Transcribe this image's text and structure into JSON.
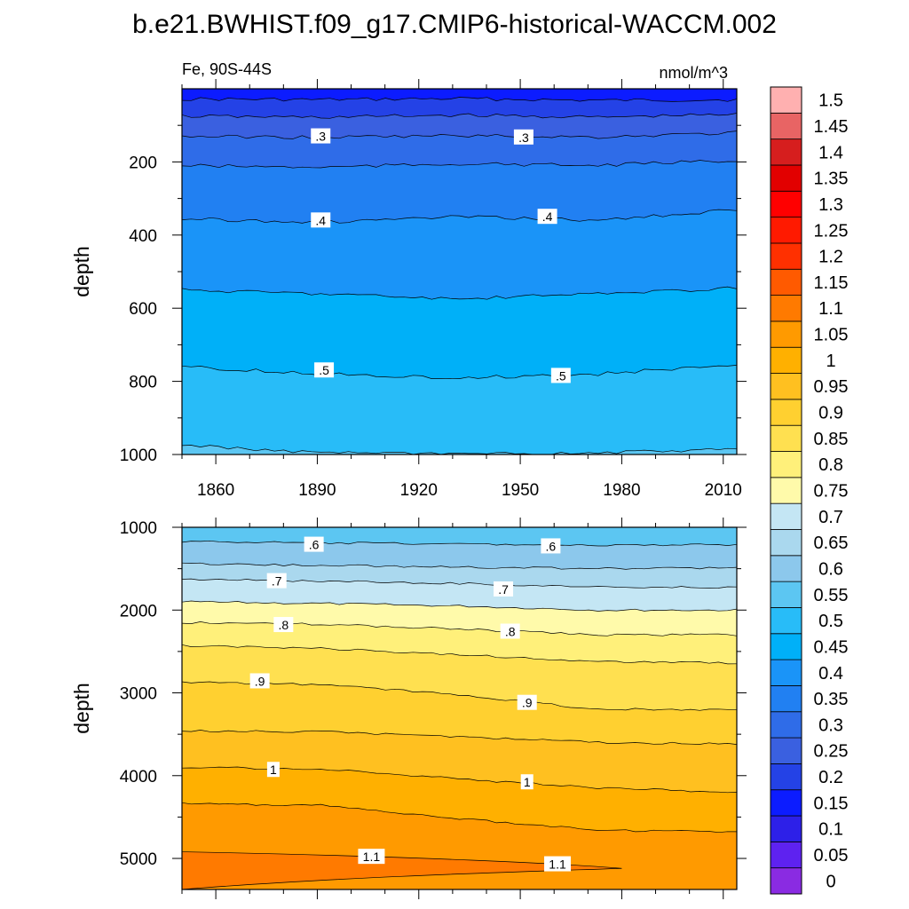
{
  "title": "b.e21.BWHIST.f09_g17.CMIP6-historical-WACCM.002",
  "chart_data": {
    "type": "contour",
    "variable_label": "Fe, 90S-44S",
    "units": "nmol/m^3",
    "ylabel": "depth",
    "xlim": [
      1850,
      2014
    ],
    "x_ticks": [
      1860,
      1890,
      1920,
      1950,
      1980,
      2010
    ],
    "x_tick_labels": [
      "1860",
      "1890",
      "1920",
      "1950",
      "1980",
      "2010"
    ],
    "panels": [
      {
        "name": "upper",
        "ylim": [
          1000,
          0
        ],
        "y_ticks": [
          200,
          400,
          600,
          800,
          1000
        ],
        "y_tick_labels": [
          "200",
          "400",
          "600",
          "800",
          "1000"
        ],
        "x_tick_labels_shown": true,
        "contours": [
          {
            "level": 0.2,
            "depths": [
              28,
              30,
              27,
              32,
              30
            ]
          },
          {
            "level": 0.25,
            "depths": [
              75,
              78,
              72,
              78,
              70
            ]
          },
          {
            "level": 0.3,
            "depths": [
              130,
              133,
              128,
              132,
              120
            ]
          },
          {
            "level": 0.35,
            "depths": [
              210,
              215,
              205,
              210,
              195
            ]
          },
          {
            "level": 0.4,
            "depths": [
              355,
              365,
              350,
              360,
              330
            ]
          },
          {
            "level": 0.45,
            "depths": [
              550,
              560,
              575,
              560,
              545
            ]
          },
          {
            "level": 0.5,
            "depths": [
              760,
              780,
              790,
              780,
              755
            ]
          },
          {
            "level": 0.55,
            "depths": [
              975,
              995,
              1000,
              995,
              985
            ]
          }
        ],
        "contour_labels": [
          {
            "text": ".3",
            "x": 1891,
            "depth": 130
          },
          {
            "text": ".3",
            "x": 1951,
            "depth": 133
          },
          {
            "text": ".4",
            "x": 1891,
            "depth": 360
          },
          {
            "text": ".4",
            "x": 1958,
            "depth": 350
          },
          {
            "text": ".5",
            "x": 1892,
            "depth": 770
          },
          {
            "text": ".5",
            "x": 1962,
            "depth": 785
          }
        ]
      },
      {
        "name": "lower",
        "ylim": [
          5375,
          1000
        ],
        "y_ticks": [
          1000,
          2000,
          3000,
          4000,
          5000
        ],
        "y_tick_labels": [
          "1000",
          "2000",
          "3000",
          "4000",
          "5000"
        ],
        "x_tick_labels_shown": false,
        "contours": [
          {
            "level": 0.6,
            "depths": [
              1170,
              1190,
              1200,
              1220,
              1210
            ]
          },
          {
            "level": 0.65,
            "depths": [
              1440,
              1460,
              1480,
              1500,
              1490
            ]
          },
          {
            "level": 0.7,
            "depths": [
              1630,
              1650,
              1680,
              1720,
              1730
            ]
          },
          {
            "level": 0.75,
            "depths": [
              1900,
              1920,
              1950,
              2000,
              2000
            ]
          },
          {
            "level": 0.8,
            "depths": [
              2150,
              2170,
              2230,
              2300,
              2300
            ]
          },
          {
            "level": 0.85,
            "depths": [
              2430,
              2460,
              2540,
              2620,
              2640
            ]
          },
          {
            "level": 0.9,
            "depths": [
              2870,
              2900,
              3020,
              3200,
              3200
            ]
          },
          {
            "level": 0.95,
            "depths": [
              3460,
              3470,
              3530,
              3600,
              3620
            ]
          },
          {
            "level": 1.0,
            "depths": [
              3900,
              3920,
              4040,
              4150,
              4200
            ]
          },
          {
            "level": 1.05,
            "depths": [
              4340,
              4360,
              4520,
              4660,
              4680
            ]
          }
        ],
        "contour_labels": [
          {
            "text": ".6",
            "x": 1889,
            "depth": 1210
          },
          {
            "text": ".6",
            "x": 1959,
            "depth": 1230
          },
          {
            "text": ".7",
            "x": 1878,
            "depth": 1650
          },
          {
            "text": ".7",
            "x": 1945,
            "depth": 1750
          },
          {
            "text": ".8",
            "x": 1880,
            "depth": 2180
          },
          {
            "text": ".8",
            "x": 1947,
            "depth": 2260
          },
          {
            "text": ".9",
            "x": 1873,
            "depth": 2860
          },
          {
            "text": ".9",
            "x": 1952,
            "depth": 3120
          },
          {
            "text": "1",
            "x": 1877,
            "depth": 3930
          },
          {
            "text": "1",
            "x": 1952,
            "depth": 4080
          },
          {
            "text": "1.1",
            "x": 1906,
            "depth": 4980
          },
          {
            "text": "1.1",
            "x": 1961,
            "depth": 5070
          }
        ]
      }
    ],
    "colorbar": {
      "levels": [
        "0",
        "0.05",
        "0.1",
        "0.15",
        "0.2",
        "0.25",
        "0.3",
        "0.35",
        "0.4",
        "0.45",
        "0.5",
        "0.55",
        "0.6",
        "0.65",
        "0.7",
        "0.75",
        "0.8",
        "0.85",
        "0.9",
        "0.95",
        "1",
        "1.05",
        "1.1",
        "1.15",
        "1.2",
        "1.25",
        "1.3",
        "1.35",
        "1.4",
        "1.45",
        "1.5"
      ],
      "colors": [
        "#8a2be2",
        "#5e22f0",
        "#2d20e8",
        "#0c1cff",
        "#2442e6",
        "#3a60e0",
        "#2f6ce8",
        "#2180f2",
        "#1a94f8",
        "#00b0f8",
        "#28bcf8",
        "#5cc6f2",
        "#8cc8ec",
        "#aad8ee",
        "#c4e6f4",
        "#fffaaa",
        "#fff07a",
        "#ffe050",
        "#ffd030",
        "#ffc020",
        "#ffb000",
        "#ff9a00",
        "#ff7a00",
        "#ff5a00",
        "#ff3000",
        "#ff1a00",
        "#ff0000",
        "#e20000",
        "#d61e1e",
        "#e86464",
        "#ffb0b0"
      ]
    }
  }
}
